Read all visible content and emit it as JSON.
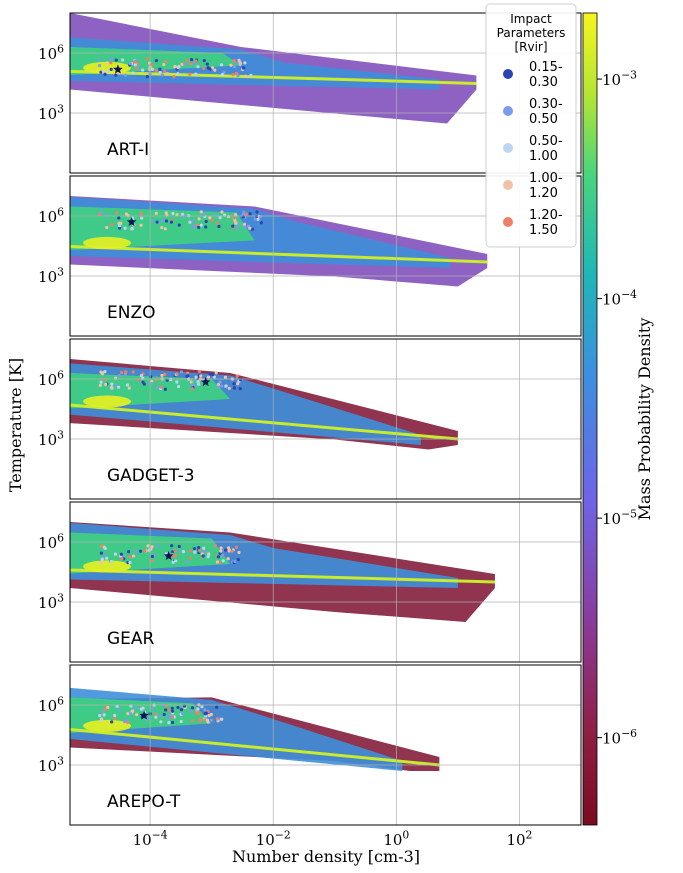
{
  "chart_data": {
    "type": "heatmap",
    "xlabel": "Number density [cm-3]",
    "ylabel": "Temperature [K]",
    "colorbar_label": "Mass Probability Density",
    "x_scale": "log",
    "y_scale": "log",
    "xlim": [
      5e-06,
      1000
    ],
    "ylim": [
      1,
      100000000.0
    ],
    "x_ticks": [
      "10^{-4}",
      "10^{-2}",
      "10^{0}",
      "10^{2}"
    ],
    "y_ticks": [
      "10^{3}",
      "10^{6}"
    ],
    "colorbar_ticks": [
      "10^{-3}",
      "10^{-4}",
      "10^{-5}",
      "10^{-6}"
    ],
    "colorbar_range": [
      4e-07,
      0.002
    ],
    "grid": true,
    "legend": {
      "title": "Impact Parameters [Rvir]",
      "placement": "top-right",
      "entries": [
        {
          "label": "0.15-0.30",
          "color": "#2b44b5"
        },
        {
          "label": "0.30-0.50",
          "color": "#7c9bef"
        },
        {
          "label": "0.50-1.00",
          "color": "#bdd5f0"
        },
        {
          "label": "1.00-1.20",
          "color": "#f2c2a6"
        },
        {
          "label": "1.20-1.50",
          "color": "#ee7f68"
        }
      ]
    },
    "panels": [
      {
        "name": "ART-I",
        "star": {
          "x": 3e-05,
          "y": 150000.0
        },
        "ridge": {
          "x_start": 5e-06,
          "x_end": 20,
          "T_start": 120000.0,
          "T_end": 30000.0
        },
        "hot": {
          "x_start": 5e-06,
          "x_end": 0.003,
          "T_peak": 1000000.0
        },
        "extent": {
          "x_max": 20,
          "T_max": 100000000.0,
          "T_min": 300.0
        },
        "low_color": "viridis"
      },
      {
        "name": "ENZO",
        "star": {
          "x": 5e-05,
          "y": 500000.0
        },
        "ridge": {
          "x_start": 5e-06,
          "x_end": 30,
          "T_start": 30000.0,
          "T_end": 5000.0
        },
        "hot": {
          "x_start": 5e-06,
          "x_end": 0.005,
          "T_peak": 1500000.0
        },
        "extent": {
          "x_max": 30,
          "T_max": 10000000.0,
          "T_min": 300.0
        },
        "low_color": "viridis"
      },
      {
        "name": "GADGET-3",
        "star": {
          "x": 0.0008,
          "y": 700000.0
        },
        "ridge": {
          "x_start": 5e-06,
          "x_end": 10,
          "T_start": 50000.0,
          "T_end": 1000.0
        },
        "hot": {
          "x_start": 5e-06,
          "x_end": 0.002,
          "T_peak": 1000000.0
        },
        "extent": {
          "x_max": 10,
          "T_max": 10000000.0,
          "T_min": 300.0
        },
        "low_color": "maroon"
      },
      {
        "name": "GEAR",
        "star": {
          "x": 0.0002,
          "y": 200000.0
        },
        "ridge": {
          "x_start": 5e-06,
          "x_end": 40,
          "T_start": 40000.0,
          "T_end": 10000.0
        },
        "hot": {
          "x_start": 5e-06,
          "x_end": 0.002,
          "T_peak": 1500000.0
        },
        "extent": {
          "x_max": 40,
          "T_max": 10000000.0,
          "T_min": 100.0
        },
        "low_color": "maroon"
      },
      {
        "name": "AREPO-T",
        "star": {
          "x": 8e-05,
          "y": 300000.0
        },
        "ridge": {
          "x_start": 5e-06,
          "x_end": 5,
          "T_start": 60000.0,
          "T_end": 1000.0
        },
        "hot": {
          "x_start": 5e-06,
          "x_end": 0.001,
          "T_peak": 1200000.0
        },
        "extent": {
          "x_max": 5,
          "T_max": 2000000.0,
          "T_min": 500.0
        },
        "low_color": "maroon"
      }
    ]
  }
}
